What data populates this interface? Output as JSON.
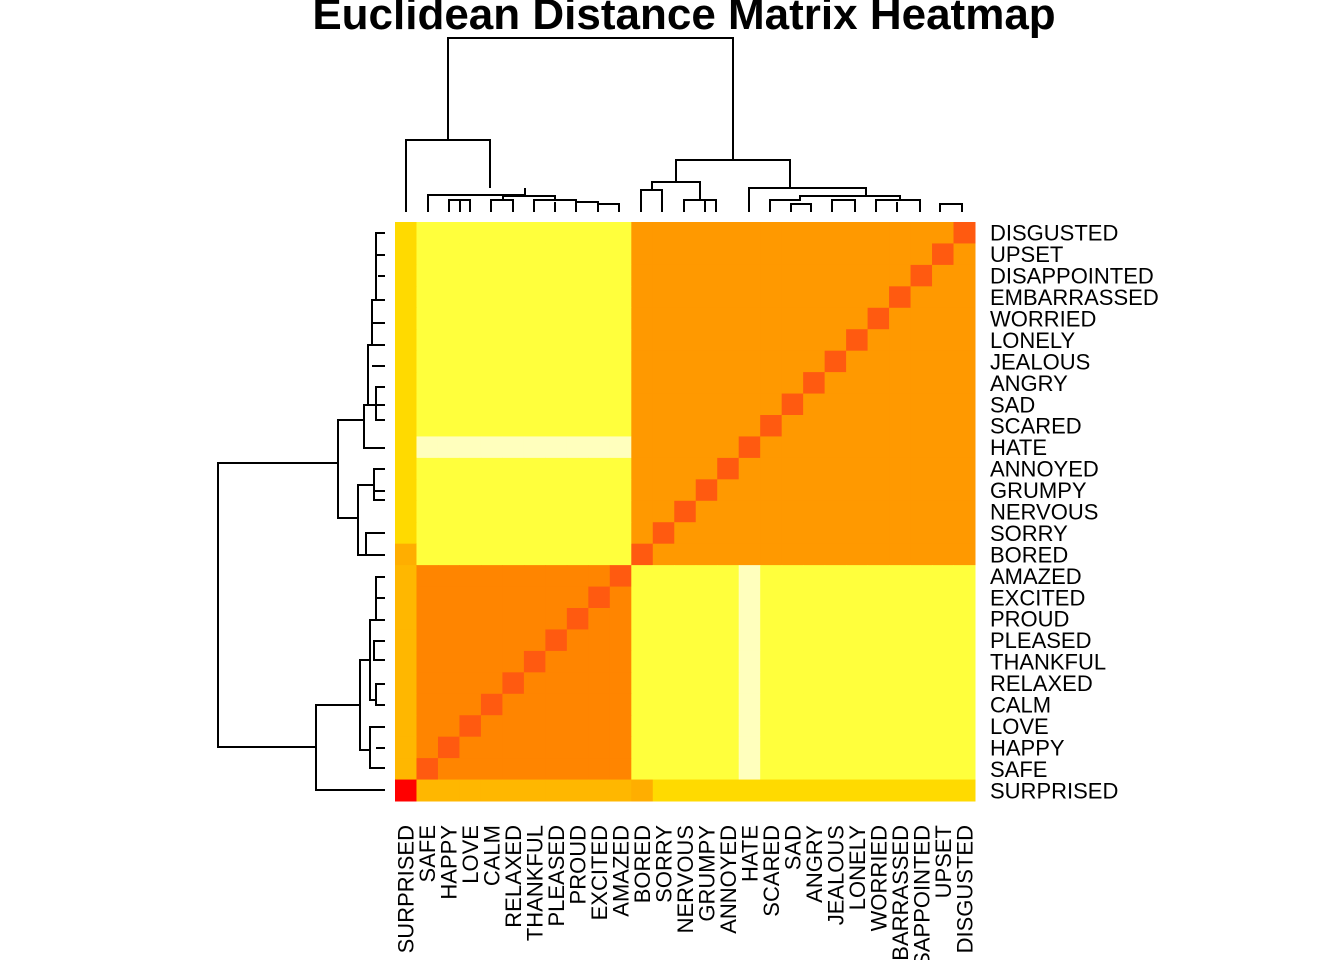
{
  "chart_data": {
    "type": "heatmap",
    "title": "Euclidean Distance Matrix Heatmap",
    "col_labels": [
      "SURPRISED",
      "SAFE",
      "HAPPY",
      "LOVE",
      "CALM",
      "RELAXED",
      "THANKFUL",
      "PLEASED",
      "PROUD",
      "EXCITED",
      "AMAZED",
      "BORED",
      "SORRY",
      "NERVOUS",
      "GRUMPY",
      "ANNOYED",
      "HATE",
      "SCARED",
      "SAD",
      "ANGRY",
      "JEALOUS",
      "LONELY",
      "WORRIED",
      "EMBARRASSED",
      "DISAPPOINTED",
      "UPSET",
      "DISGUSTED"
    ],
    "row_labels_top_to_bottom": [
      "DISGUSTED",
      "UPSET",
      "DISAPPOINTED",
      "EMBARRASSED",
      "WORRIED",
      "LONELY",
      "JEALOUS",
      "ANGRY",
      "SAD",
      "SCARED",
      "HATE",
      "ANNOYED",
      "GRUMPY",
      "NERVOUS",
      "SORRY",
      "BORED",
      "AMAZED",
      "EXCITED",
      "PROUD",
      "PLEASED",
      "THANKFUL",
      "RELAXED",
      "CALM",
      "LOVE",
      "HAPPY",
      "SAFE",
      "SURPRISED"
    ],
    "color_scale": "heat (red = small distance, white = large distance)",
    "colors": {
      "red": "#ff0000",
      "orange": "#ff8c00",
      "yellow": "#ffff00",
      "white": "#ffffff"
    },
    "diagonal_value": 0,
    "dendrogram": "complete",
    "clusters": [
      [
        "SURPRISED",
        "SAFE",
        "HAPPY",
        "LOVE",
        "CALM",
        "RELAXED",
        "THANKFUL",
        "PLEASED",
        "PROUD",
        "EXCITED",
        "AMAZED"
      ],
      [
        "BORED",
        "SORRY",
        "NERVOUS",
        "GRUMPY",
        "ANNOYED",
        "HATE",
        "SCARED",
        "SAD",
        "ANGRY",
        "JEALOUS",
        "LONELY",
        "WORRIED",
        "EMBARRASSED",
        "DISAPPOINTED",
        "UPSET",
        "DISGUSTED"
      ]
    ]
  }
}
